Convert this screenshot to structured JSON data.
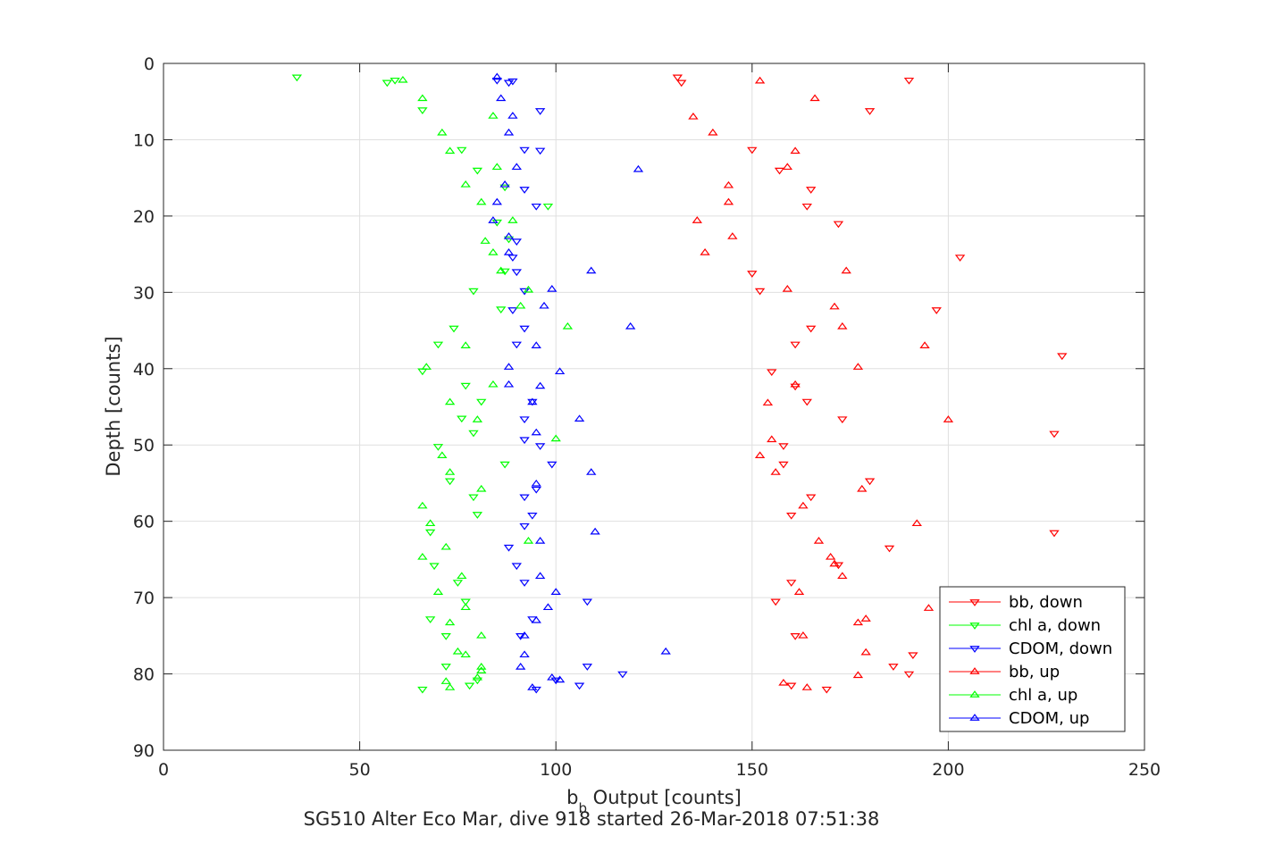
{
  "chart_data": {
    "type": "scatter",
    "ylabel": "Depth [counts]",
    "xlabel_main": "b",
    "xlabel_sub": "b",
    "xlabel_rest": " Output [counts]",
    "caption": "SG510 Alter Eco Mar, dive 918 started 26-Mar-2018 07:51:38",
    "xlim": [
      0,
      250
    ],
    "ylim": [
      0,
      90
    ],
    "y_reversed": true,
    "grid": true,
    "legend_position": "bottom-right",
    "x_ticks": [
      0,
      50,
      100,
      150,
      200,
      250
    ],
    "y_ticks": [
      0,
      10,
      20,
      30,
      40,
      50,
      60,
      70,
      80,
      90
    ],
    "colors": {
      "red": "#ff0000",
      "green": "#00ff00",
      "blue": "#0000ff"
    },
    "series": [
      {
        "name": "bb, down",
        "color": "#ff0000",
        "marker": "triangle-down",
        "points": [
          [
            131,
            1.8
          ],
          [
            132,
            2.5
          ],
          [
            190,
            2.2
          ],
          [
            180,
            6.2
          ],
          [
            150,
            11.3
          ],
          [
            157,
            14
          ],
          [
            165,
            16.5
          ],
          [
            164,
            18.7
          ],
          [
            172,
            21
          ],
          [
            150,
            27.5
          ],
          [
            203,
            25.4
          ],
          [
            152,
            29.8
          ],
          [
            197,
            32.3
          ],
          [
            165,
            34.7
          ],
          [
            161,
            36.8
          ],
          [
            229,
            38.3
          ],
          [
            155,
            40.4
          ],
          [
            161,
            42.3
          ],
          [
            164,
            44.3
          ],
          [
            173,
            46.6
          ],
          [
            227,
            48.5
          ],
          [
            158,
            50.1
          ],
          [
            158,
            52.5
          ],
          [
            180,
            54.7
          ],
          [
            165,
            56.8
          ],
          [
            160,
            59.2
          ],
          [
            227,
            61.5
          ],
          [
            185,
            63.5
          ],
          [
            172,
            65.7
          ],
          [
            160,
            68
          ],
          [
            156,
            70.5
          ],
          [
            161,
            75
          ],
          [
            191,
            77.5
          ],
          [
            186,
            79
          ],
          [
            190,
            80
          ],
          [
            160,
            81.5
          ],
          [
            169,
            82
          ]
        ]
      },
      {
        "name": "chl a, down",
        "color": "#00ff00",
        "marker": "triangle-down",
        "points": [
          [
            34,
            1.8
          ],
          [
            57,
            2.5
          ],
          [
            59,
            2.2
          ],
          [
            66,
            6.1
          ],
          [
            76,
            11.3
          ],
          [
            80,
            14
          ],
          [
            87,
            16.2
          ],
          [
            98,
            18.7
          ],
          [
            85,
            20.8
          ],
          [
            88,
            23
          ],
          [
            87,
            27.2
          ],
          [
            79,
            29.8
          ],
          [
            86,
            32.2
          ],
          [
            74,
            34.7
          ],
          [
            70,
            36.8
          ],
          [
            66,
            40.3
          ],
          [
            77,
            42.2
          ],
          [
            81,
            44.3
          ],
          [
            76,
            46.5
          ],
          [
            79,
            48.4
          ],
          [
            70,
            50.2
          ],
          [
            87,
            52.5
          ],
          [
            73,
            54.7
          ],
          [
            79,
            56.8
          ],
          [
            80,
            59.1
          ],
          [
            68,
            61.4
          ],
          [
            69,
            65.8
          ],
          [
            75,
            68
          ],
          [
            77,
            70.5
          ],
          [
            68,
            72.8
          ],
          [
            72,
            75
          ],
          [
            72,
            79
          ],
          [
            80,
            80.8
          ],
          [
            78,
            81.5
          ],
          [
            66,
            82
          ]
        ]
      },
      {
        "name": "CDOM, down",
        "color": "#0000ff",
        "marker": "triangle-down",
        "points": [
          [
            85,
            2.2
          ],
          [
            88,
            2.5
          ],
          [
            89,
            2.3
          ],
          [
            96,
            6.2
          ],
          [
            92,
            11.3
          ],
          [
            96,
            11.4
          ],
          [
            92,
            16.5
          ],
          [
            95,
            18.7
          ],
          [
            90,
            23.3
          ],
          [
            89,
            25.4
          ],
          [
            90,
            27.3
          ],
          [
            92,
            29.8
          ],
          [
            89,
            32.3
          ],
          [
            92,
            34.7
          ],
          [
            90,
            36.8
          ],
          [
            94,
            44.3
          ],
          [
            92,
            46.6
          ],
          [
            92,
            49.3
          ],
          [
            96,
            50.1
          ],
          [
            99,
            52.5
          ],
          [
            95,
            55.8
          ],
          [
            92,
            56.8
          ],
          [
            94,
            59.2
          ],
          [
            92,
            60.6
          ],
          [
            88,
            63.4
          ],
          [
            90,
            65.8
          ],
          [
            92,
            68
          ],
          [
            108,
            70.5
          ],
          [
            94,
            72.8
          ],
          [
            91,
            75
          ],
          [
            108,
            79
          ],
          [
            117,
            80
          ],
          [
            100,
            80.8
          ],
          [
            106,
            81.5
          ],
          [
            95,
            82
          ]
        ]
      },
      {
        "name": "bb, up",
        "color": "#ff0000",
        "marker": "triangle-up",
        "points": [
          [
            152,
            2.3
          ],
          [
            166,
            4.6
          ],
          [
            135,
            7
          ],
          [
            140,
            9.1
          ],
          [
            161,
            11.5
          ],
          [
            159,
            13.6
          ],
          [
            144,
            16
          ],
          [
            144,
            18.2
          ],
          [
            136,
            20.6
          ],
          [
            145,
            22.7
          ],
          [
            138,
            24.8
          ],
          [
            174,
            27.2
          ],
          [
            159,
            29.6
          ],
          [
            171,
            31.9
          ],
          [
            173,
            34.5
          ],
          [
            194,
            37
          ],
          [
            177,
            39.8
          ],
          [
            161,
            42.1
          ],
          [
            154,
            44.5
          ],
          [
            200,
            46.7
          ],
          [
            155,
            49.3
          ],
          [
            152,
            51.4
          ],
          [
            156,
            53.6
          ],
          [
            178,
            55.8
          ],
          [
            163,
            58
          ],
          [
            192,
            60.3
          ],
          [
            167,
            62.6
          ],
          [
            170,
            64.7
          ],
          [
            171,
            65.6
          ],
          [
            173,
            67.2
          ],
          [
            162,
            69.3
          ],
          [
            195,
            71.4
          ],
          [
            179,
            72.8
          ],
          [
            177,
            73.3
          ],
          [
            163,
            75
          ],
          [
            179,
            77.2
          ],
          [
            177,
            80.2
          ],
          [
            158,
            81.2
          ],
          [
            164,
            81.8
          ]
        ]
      },
      {
        "name": "chl a, up",
        "color": "#00ff00",
        "marker": "triangle-up",
        "points": [
          [
            61,
            2.2
          ],
          [
            66,
            4.6
          ],
          [
            84,
            6.9
          ],
          [
            71,
            9.1
          ],
          [
            73,
            11.5
          ],
          [
            85,
            13.6
          ],
          [
            77,
            15.9
          ],
          [
            81,
            18.2
          ],
          [
            89,
            20.6
          ],
          [
            82,
            23.3
          ],
          [
            84,
            24.8
          ],
          [
            86,
            27.2
          ],
          [
            93,
            29.7
          ],
          [
            91,
            31.8
          ],
          [
            103,
            34.5
          ],
          [
            77,
            37
          ],
          [
            67,
            39.8
          ],
          [
            84,
            42.1
          ],
          [
            73,
            44.4
          ],
          [
            80,
            46.7
          ],
          [
            100,
            49.2
          ],
          [
            71,
            51.4
          ],
          [
            73,
            53.6
          ],
          [
            81,
            55.8
          ],
          [
            66,
            58
          ],
          [
            68,
            60.3
          ],
          [
            72,
            63.4
          ],
          [
            93,
            62.6
          ],
          [
            66,
            64.7
          ],
          [
            76,
            67.2
          ],
          [
            70,
            69.3
          ],
          [
            77,
            71.3
          ],
          [
            73,
            73.3
          ],
          [
            81,
            75
          ],
          [
            75,
            77.1
          ],
          [
            77,
            77.5
          ],
          [
            81,
            79.1
          ],
          [
            81,
            79.6
          ],
          [
            80,
            80.5
          ],
          [
            72,
            81
          ],
          [
            73,
            81.8
          ]
        ]
      },
      {
        "name": "CDOM, up",
        "color": "#0000ff",
        "marker": "triangle-up",
        "points": [
          [
            85,
            1.8
          ],
          [
            86,
            4.6
          ],
          [
            89,
            6.9
          ],
          [
            88,
            9.1
          ],
          [
            90,
            13.6
          ],
          [
            121,
            13.9
          ],
          [
            87,
            15.9
          ],
          [
            85,
            18.2
          ],
          [
            84,
            20.6
          ],
          [
            88,
            22.7
          ],
          [
            88,
            24.8
          ],
          [
            109,
            27.2
          ],
          [
            99,
            29.6
          ],
          [
            97,
            31.8
          ],
          [
            119,
            34.5
          ],
          [
            95,
            37
          ],
          [
            88,
            39.8
          ],
          [
            101,
            40.4
          ],
          [
            88,
            42.1
          ],
          [
            96,
            42.3
          ],
          [
            94,
            44.4
          ],
          [
            106,
            46.6
          ],
          [
            95,
            48.4
          ],
          [
            109,
            53.6
          ],
          [
            95,
            55.1
          ],
          [
            110,
            61.4
          ],
          [
            96,
            62.6
          ],
          [
            96,
            67.2
          ],
          [
            100,
            69.3
          ],
          [
            98,
            71.3
          ],
          [
            95,
            73
          ],
          [
            92,
            75
          ],
          [
            128,
            77.1
          ],
          [
            92,
            77.5
          ],
          [
            91,
            79.1
          ],
          [
            99,
            80.5
          ],
          [
            101,
            80.8
          ],
          [
            94,
            81.8
          ]
        ]
      }
    ]
  }
}
